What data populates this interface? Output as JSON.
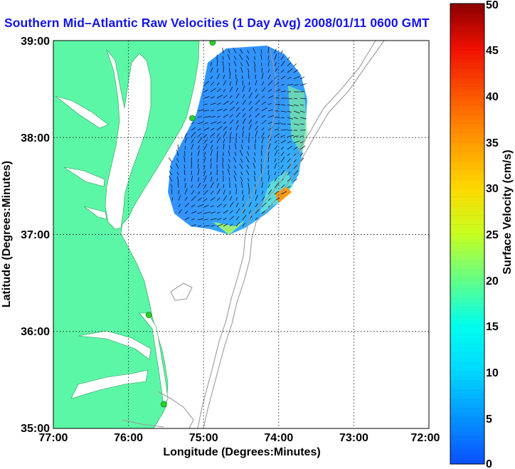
{
  "title": "Southern Mid–Atlantic Raw Velocities (1 Day Avg) 2008/01/11 0600 GMT",
  "map": {
    "xlabel": "Longitude (Degrees:Minutes)",
    "ylabel": "Latitude (Degrees:Minutes)",
    "lon_range": [
      -77,
      -72
    ],
    "lat_range": [
      35,
      39
    ],
    "x_ticks": [
      "77:00",
      "76:00",
      "75:00",
      "74:00",
      "73:00",
      "72:00"
    ],
    "y_ticks": [
      "39:00",
      "38:00",
      "37:00",
      "36:00",
      "35:00"
    ],
    "grid": "dotted",
    "colors": {
      "land": "#5cf7a6",
      "water": "#ffffff",
      "bathymetry": "#9a9a9a",
      "stations": "#2ad02a"
    },
    "stations": [
      {
        "lon": -74.88,
        "lat": 38.98
      },
      {
        "lon": -75.15,
        "lat": 38.2
      },
      {
        "lon": -75.73,
        "lat": 36.17
      },
      {
        "lon": -75.53,
        "lat": 35.25
      }
    ]
  },
  "colorbar": {
    "label": "Surface Velocity (cm/s)",
    "ticks": [
      "0",
      "5",
      "10",
      "15",
      "20",
      "25",
      "30",
      "35",
      "40",
      "45",
      "50"
    ],
    "min": 0,
    "max": 50
  }
}
